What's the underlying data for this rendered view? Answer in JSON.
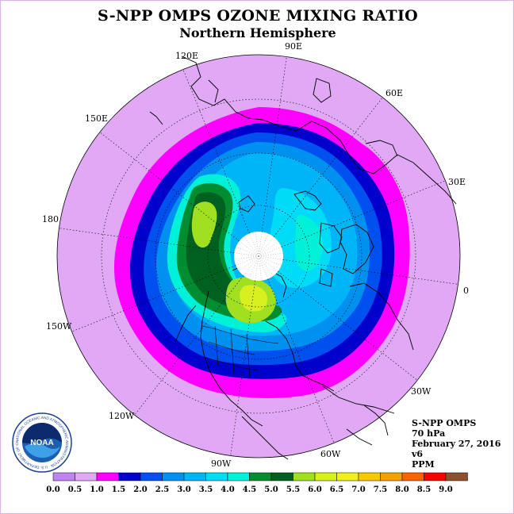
{
  "header": {
    "title": "S-NPP OMPS OZONE MIXING RATIO",
    "subtitle": "Northern Hemisphere"
  },
  "map": {
    "projection": "north polar stereographic",
    "longitude_labels": [
      "90E",
      "60E",
      "30E",
      "0",
      "30W",
      "60W",
      "90W",
      "120W",
      "150W",
      "180",
      "150E",
      "120E"
    ],
    "polar_night_no_data": true,
    "colors": {
      "background_disk": "#e0a8f5",
      "coastline": "#000000"
    }
  },
  "info": {
    "instrument": "S-NPP OMPS",
    "level": "70 hPa",
    "date": "February 27, 2016",
    "version": "v6",
    "units": "PPM"
  },
  "colorbar": {
    "ticks": [
      "0.0",
      "0.5",
      "1.0",
      "1.5",
      "2.0",
      "2.5",
      "3.0",
      "3.5",
      "4.0",
      "4.5",
      "5.0",
      "5.5",
      "6.0",
      "6.5",
      "7.0",
      "7.5",
      "8.0",
      "8.5",
      "9.0"
    ],
    "colors": [
      "#c084f0",
      "#e0a8f5",
      "#ff00ff",
      "#0000cc",
      "#0050f0",
      "#0090f0",
      "#00b4f8",
      "#00dcf8",
      "#00f0d8",
      "#008c30",
      "#006020",
      "#a0e020",
      "#d8f020",
      "#f0f020",
      "#f8c800",
      "#f8a000",
      "#f86400",
      "#f80000",
      "#8c5030"
    ]
  },
  "logo": {
    "text": "NOAA",
    "ring_text": "NATIONAL OCEANIC AND ATMOSPHERIC ADMINISTRATION · U.S. DEPARTMENT OF COMMERCE"
  }
}
